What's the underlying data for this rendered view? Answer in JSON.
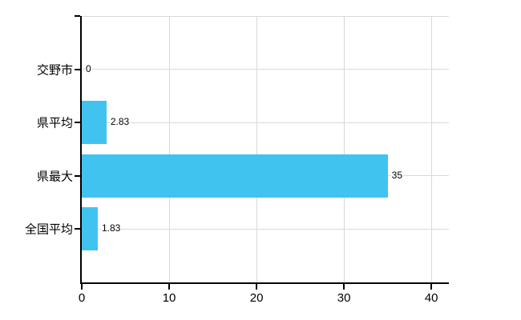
{
  "chart_data": {
    "type": "bar",
    "orientation": "horizontal",
    "title": "",
    "xlabel": "",
    "ylabel": "",
    "categories": [
      "交野市",
      "県平均",
      "県最大",
      "全国平均"
    ],
    "values": [
      0,
      2.83,
      35,
      1.83
    ],
    "value_labels": [
      "0",
      "2.83",
      "35",
      "1.83"
    ],
    "x_tick_labels": [
      "0",
      "10",
      "20",
      "30",
      "40"
    ],
    "x_tick_values": [
      0,
      10,
      20,
      30,
      40
    ],
    "xlim": [
      0,
      42
    ],
    "grid": true,
    "legend": false,
    "colors": {
      "bar": "#41c3f0",
      "grid": "#d9d9d9",
      "axis": "#000000",
      "text": "#000000",
      "background": "#ffffff"
    }
  }
}
